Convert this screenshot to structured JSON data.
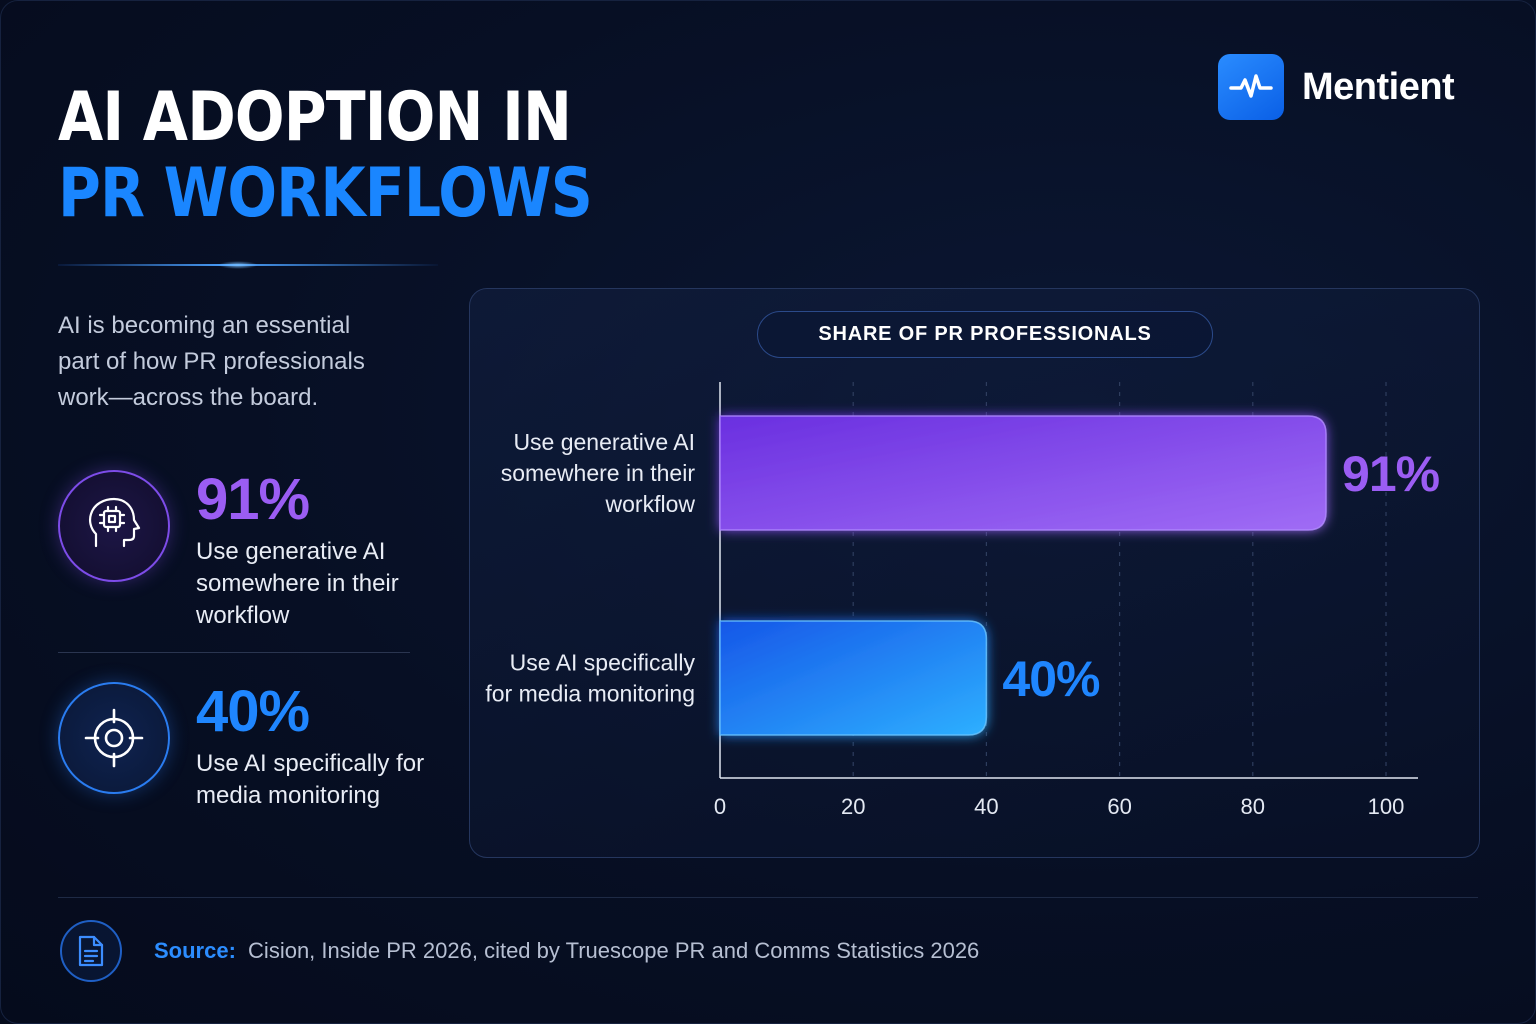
{
  "title": {
    "line1": "AI ADOPTION IN",
    "line2": "PR WORKFLOWS"
  },
  "brand": {
    "name": "Mentient",
    "icon": "pulse-icon"
  },
  "intro": "AI is becoming an essential part of how PR professionals work—across the board.",
  "stats": [
    {
      "value": "91%",
      "description": "Use generative AI somewhere in their workflow",
      "icon": "ai-head-chip-icon",
      "color": "#9b5df3"
    },
    {
      "value": "40%",
      "description": "Use AI specifically for media monitoring",
      "icon": "target-icon",
      "color": "#1f86ff"
    }
  ],
  "chart_data": {
    "type": "bar",
    "orientation": "horizontal",
    "title": "SHARE OF PR PROFESSIONALS",
    "categories": [
      "Use generative AI somewhere in their workflow",
      "Use AI specifically for media monitoring"
    ],
    "category_lines": [
      [
        "Use generative AI",
        "somewhere in their",
        "workflow"
      ],
      [
        "Use AI specifically",
        "for media monitoring"
      ]
    ],
    "values": [
      91,
      40
    ],
    "value_labels": [
      "91%",
      "40%"
    ],
    "bar_colors": [
      "#7e43ea",
      "#1d7cff"
    ],
    "xlim": [
      0,
      100
    ],
    "xticks": [
      0,
      20,
      40,
      60,
      80,
      100
    ],
    "grid": "vertical dashed"
  },
  "footer": {
    "source_label": "Source:",
    "source_text": "Cision, Inside PR 2026, cited by Truescope PR and Comms Statistics 2026",
    "icon": "document-icon"
  }
}
